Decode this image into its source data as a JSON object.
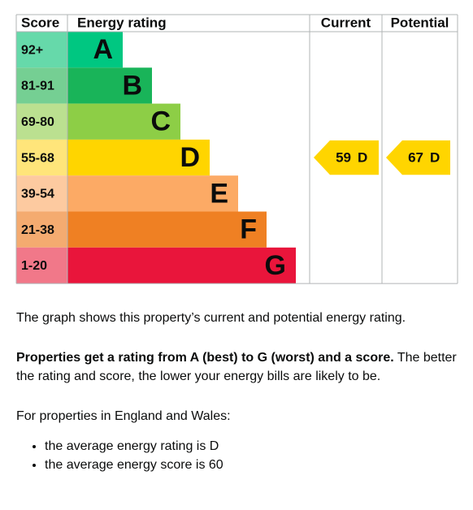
{
  "header": {
    "score": "Score",
    "rating": "Energy rating",
    "current": "Current",
    "potential": "Potential"
  },
  "bands": [
    {
      "score": "92+",
      "letter": "A"
    },
    {
      "score": "81-91",
      "letter": "B"
    },
    {
      "score": "69-80",
      "letter": "C"
    },
    {
      "score": "55-68",
      "letter": "D"
    },
    {
      "score": "39-54",
      "letter": "E"
    },
    {
      "score": "21-38",
      "letter": "F"
    },
    {
      "score": "1-20",
      "letter": "G"
    }
  ],
  "current": {
    "score": 59,
    "letter": "D"
  },
  "potential": {
    "score": 67,
    "letter": "D"
  },
  "text": {
    "intro": "The graph shows this property’s current and potential energy rating.",
    "bold": "Properties get a rating from A (best) to G (worst) and a score.",
    "rest": "The better the rating and score, the lower your energy bills are likely to be.",
    "regional": "For properties in England and Wales:",
    "bullets": [
      "the average energy rating is D",
      "the average energy score is 60"
    ]
  }
}
